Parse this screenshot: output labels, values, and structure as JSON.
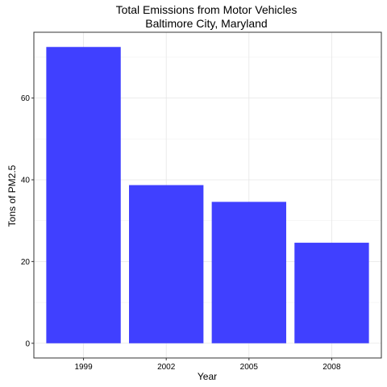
{
  "chart_data": {
    "type": "bar",
    "title": "Total Emissions from Motor Vehicles",
    "subtitle": "Baltimore City, Maryland",
    "xlabel": "Year",
    "ylabel": "Tons of PM2.5",
    "categories": [
      "1999",
      "2002",
      "2005",
      "2008"
    ],
    "values": [
      72.5,
      38.7,
      34.6,
      24.6
    ],
    "ylim": [
      -3.6,
      76.1
    ],
    "yticks": [
      0,
      20,
      40,
      60
    ],
    "ytick_labels": [
      "0",
      "20",
      "40",
      "60"
    ],
    "grid": true,
    "legend": "none",
    "bar_color": "#4040ff"
  }
}
